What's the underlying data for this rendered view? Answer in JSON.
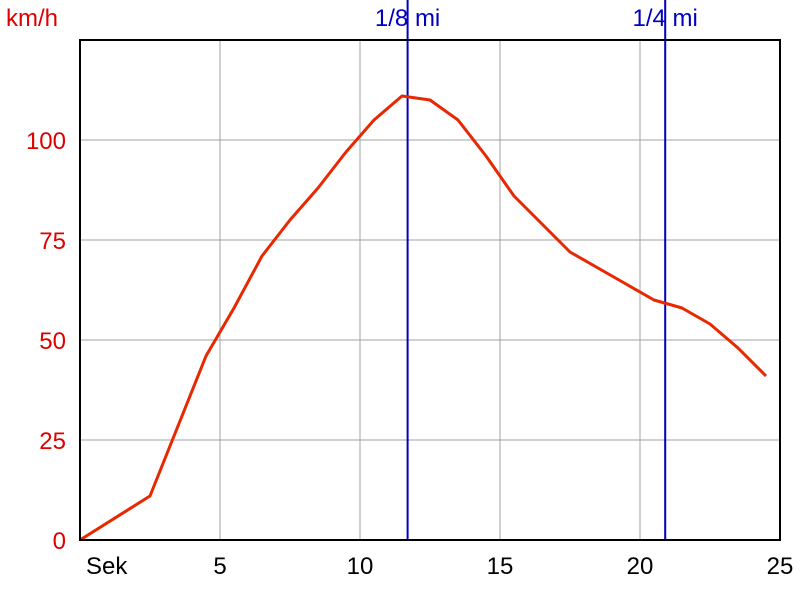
{
  "chart_data": {
    "type": "line",
    "ylabel": "km/h",
    "xlabel": "Sek",
    "xlim": [
      0,
      25
    ],
    "ylim": [
      0,
      125
    ],
    "x_ticks": [
      5,
      10,
      15,
      20,
      25
    ],
    "y_ticks": [
      0,
      25,
      50,
      75,
      100
    ],
    "grid": true,
    "series": [
      {
        "x": [
          0,
          2.5,
          4.5,
          5.5,
          6.5,
          7.5,
          8.5,
          9.5,
          10.5,
          11.5,
          12.5,
          13.5,
          14.5,
          15.5,
          16.5,
          17.5,
          18.5,
          19.5,
          20.5,
          21.5,
          22.5,
          23.5,
          24.5
        ],
        "y": [
          0,
          11,
          46,
          58,
          71,
          80,
          88,
          97,
          105,
          111,
          110,
          105,
          96,
          86,
          79,
          72,
          68,
          64,
          60,
          58,
          54,
          48,
          41
        ]
      }
    ],
    "markers": [
      {
        "label": "1/8 mi",
        "x": 11.7
      },
      {
        "label": "1/4 mi",
        "x": 20.9
      }
    ],
    "colors": {
      "line": "#e82800",
      "marker": "#0000c0",
      "grid": "#a0a0a0",
      "axis": "#000000",
      "ytick": "#e00000"
    }
  }
}
